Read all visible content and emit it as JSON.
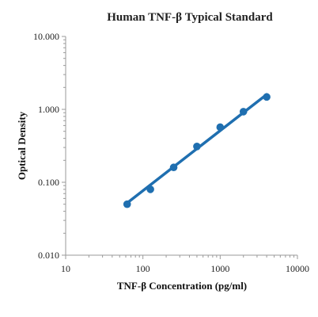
{
  "chart_data": {
    "type": "scatter",
    "title": "Human TNF-β Typical Standard",
    "xlabel": "TNF-β Concentration (pg/ml)",
    "ylabel": "Optical Density",
    "x_scale": "log",
    "y_scale": "log",
    "xlim": [
      10,
      10000
    ],
    "ylim": [
      0.01,
      10
    ],
    "x_ticks": [
      "10",
      "100",
      "1000",
      "10000"
    ],
    "y_ticks": [
      "0.010",
      "0.100",
      "1.000",
      "10.000"
    ],
    "grid": false,
    "legend": "none",
    "series": [
      {
        "x": [
          62.5,
          125,
          250,
          500,
          1000,
          2000,
          4000
        ],
        "y": [
          0.05,
          0.08,
          0.16,
          0.31,
          0.57,
          0.93,
          1.48
        ],
        "color": "#1f6fb0",
        "trendline": {
          "x": [
            62.5,
            4000
          ],
          "y": [
            0.052,
            1.6
          ]
        }
      }
    ]
  }
}
